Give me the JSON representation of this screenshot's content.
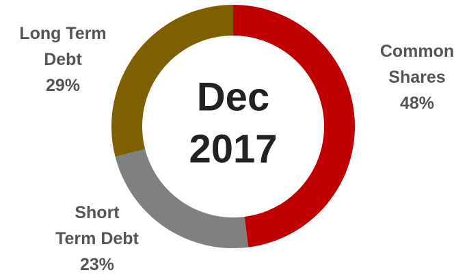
{
  "chart_data": {
    "type": "donut",
    "center_label": [
      "Dec",
      "2017"
    ],
    "categories": [
      "Common Shares",
      "Short Term Debt",
      "Long Term Debt"
    ],
    "values": [
      48,
      23,
      29
    ],
    "value_labels": [
      "48%",
      "23%",
      "29%"
    ],
    "colors": [
      "#c00000",
      "#808080",
      "#7f6000"
    ]
  }
}
